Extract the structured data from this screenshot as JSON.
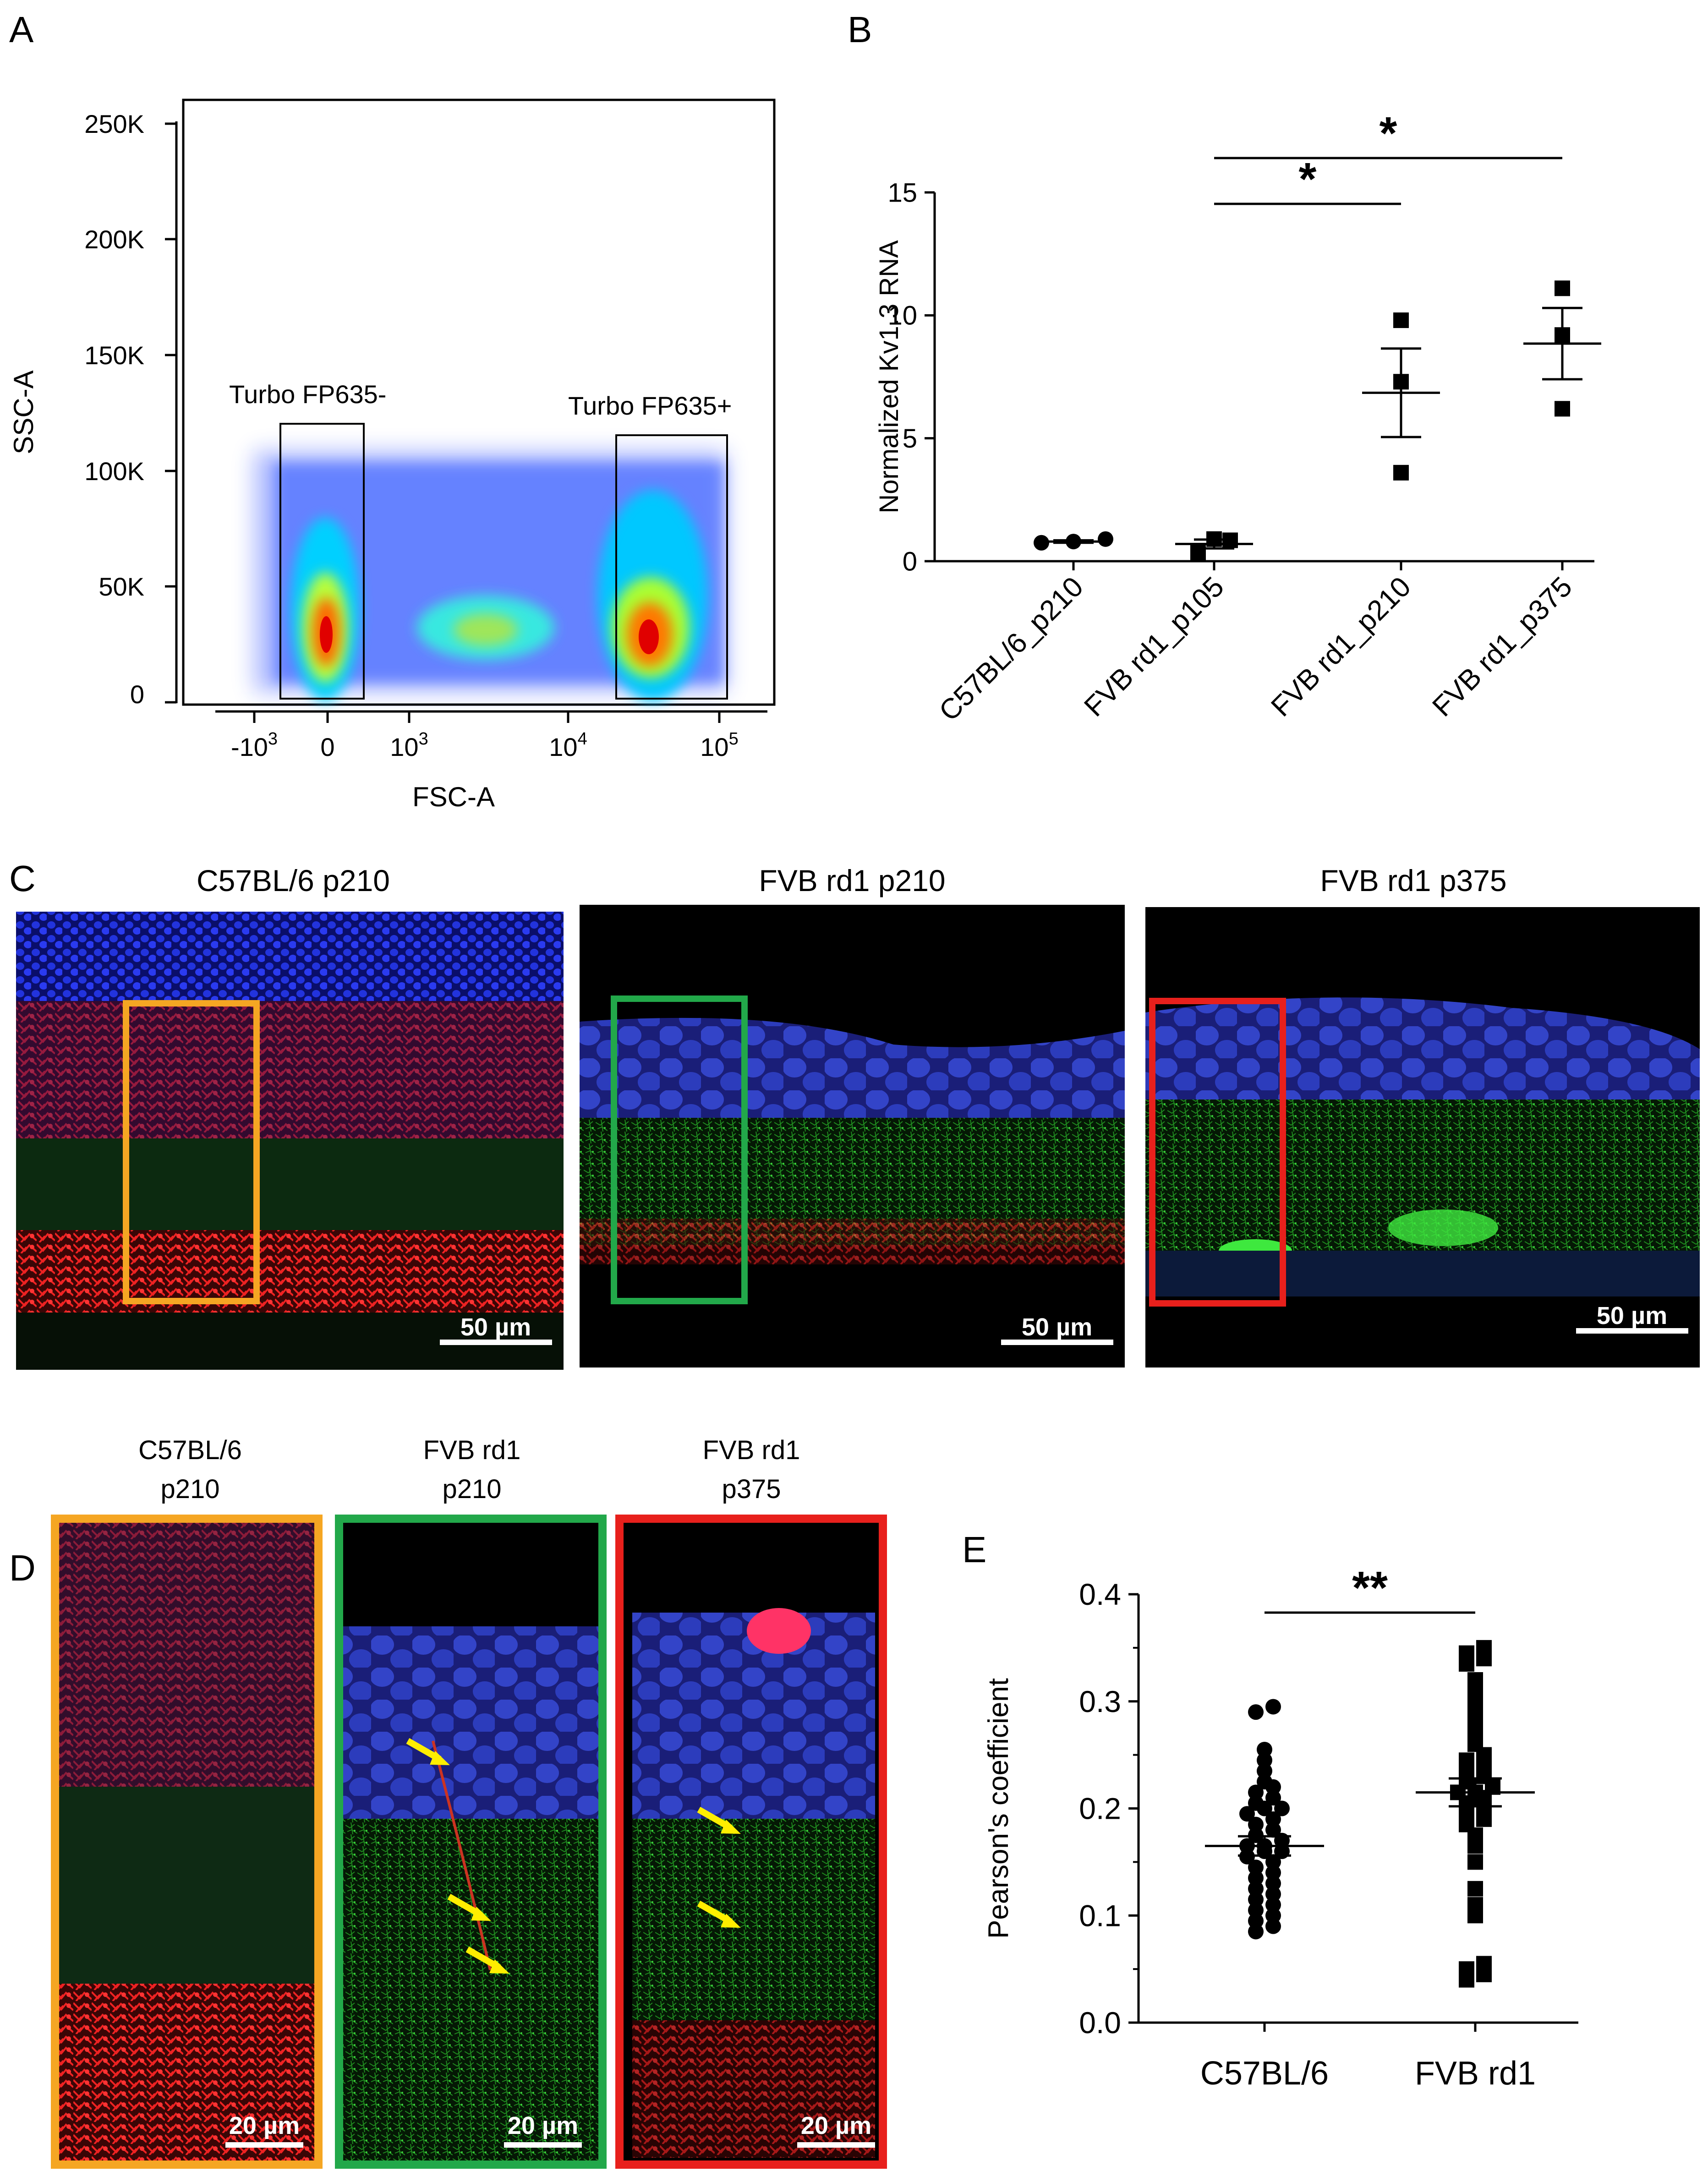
{
  "panels": {
    "A": {
      "letter": "A",
      "xlabel": "FSC-A",
      "ylabel": "SSC-A",
      "yticks": [
        "250K",
        "200K",
        "150K",
        "100K",
        "50K",
        "0"
      ],
      "xticks": [
        {
          "base": "-10",
          "exp": "3"
        },
        {
          "base": "0",
          "exp": ""
        },
        {
          "base": "10",
          "exp": "3"
        },
        {
          "base": "10",
          "exp": "4"
        },
        {
          "base": "10",
          "exp": "5"
        }
      ],
      "gates": [
        "Turbo FP635-",
        "Turbo FP635+"
      ]
    },
    "B": {
      "letter": "B"
    },
    "C": {
      "letter": "C",
      "images": [
        {
          "title": "C57BL/6 p210",
          "scalebar": "50 µm",
          "box_color": "#f5a623"
        },
        {
          "title": "FVB rd1 p210",
          "scalebar": "50 µm",
          "box_color": "#22a84a"
        },
        {
          "title": "FVB rd1 p375",
          "scalebar": "50 µm",
          "box_color": "#e8201c"
        }
      ]
    },
    "D": {
      "letter": "D",
      "images": [
        {
          "title1": "C57BL/6",
          "title2": "p210",
          "scalebar": "20 µm",
          "frame_color": "#f5a623"
        },
        {
          "title1": "FVB rd1",
          "title2": "p210",
          "scalebar": "20 µm",
          "frame_color": "#22a84a"
        },
        {
          "title1": "FVB rd1",
          "title2": "p375",
          "scalebar": "20 µm",
          "frame_color": "#e8201c"
        }
      ]
    },
    "E": {
      "letter": "E"
    }
  },
  "chart_data": [
    {
      "id": "B",
      "type": "scatter",
      "title": "",
      "ylabel": "Normalized Kv1.3 RNA",
      "xlabel": "",
      "ylim": [
        0,
        15
      ],
      "yticks": [
        0,
        5,
        10,
        15
      ],
      "categories": [
        "C57BL/6_p210",
        "FVB rd1_p105",
        "FVB rd1_p210",
        "FVB rd1_p375"
      ],
      "series": [
        {
          "name": "C57BL/6_p210",
          "marker": "circle",
          "values": [
            0.75,
            0.9,
            0.8
          ],
          "mean": 0.8,
          "sem": 0.05
        },
        {
          "name": "FVB rd1_p105",
          "marker": "square",
          "values": [
            0.35,
            0.9,
            0.85
          ],
          "mean": 0.7,
          "sem": 0.18
        },
        {
          "name": "FVB rd1_p210",
          "marker": "square",
          "values": [
            3.6,
            7.3,
            9.8
          ],
          "mean": 6.85,
          "sem": 1.8
        },
        {
          "name": "FVB rd1_p375",
          "marker": "square",
          "values": [
            6.2,
            9.2,
            11.1
          ],
          "mean": 8.85,
          "sem": 1.45
        }
      ],
      "significance": [
        {
          "from": 1,
          "to": 2,
          "label": "*"
        },
        {
          "from": 1,
          "to": 3,
          "label": "*"
        }
      ]
    },
    {
      "id": "E",
      "type": "scatter",
      "title": "",
      "ylabel": "Pearson's coefficient",
      "xlabel": "",
      "ylim": [
        0,
        0.4
      ],
      "yticks": [
        "0.0",
        "0.1",
        "0.2",
        "0.3",
        "0.4"
      ],
      "categories": [
        "C57BL/6",
        "FVB rd1"
      ],
      "series": [
        {
          "name": "C57BL/6",
          "marker": "circle",
          "mean": 0.165,
          "sem": 0.009,
          "values": [
            0.295,
            0.29,
            0.255,
            0.245,
            0.235,
            0.225,
            0.22,
            0.215,
            0.21,
            0.205,
            0.2,
            0.2,
            0.195,
            0.19,
            0.185,
            0.18,
            0.175,
            0.17,
            0.165,
            0.165,
            0.16,
            0.16,
            0.155,
            0.15,
            0.145,
            0.14,
            0.135,
            0.13,
            0.125,
            0.12,
            0.115,
            0.11,
            0.105,
            0.1,
            0.095,
            0.09,
            0.085
          ]
        },
        {
          "name": "FVB rd1",
          "marker": "square",
          "mean": 0.215,
          "sem": 0.013,
          "values": [
            0.35,
            0.345,
            0.34,
            0.335,
            0.32,
            0.31,
            0.3,
            0.29,
            0.28,
            0.27,
            0.26,
            0.25,
            0.245,
            0.24,
            0.235,
            0.23,
            0.225,
            0.22,
            0.215,
            0.215,
            0.21,
            0.205,
            0.2,
            0.195,
            0.19,
            0.185,
            0.175,
            0.165,
            0.15,
            0.125,
            0.11,
            0.1,
            0.055,
            0.05,
            0.045,
            0.04
          ]
        }
      ],
      "significance": [
        {
          "from": 0,
          "to": 1,
          "label": "**"
        }
      ]
    }
  ]
}
